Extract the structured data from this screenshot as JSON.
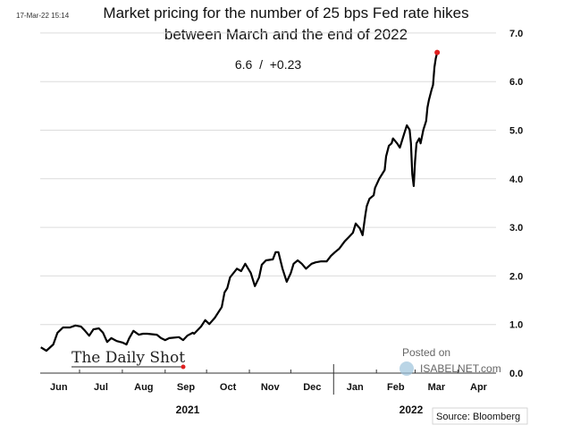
{
  "timestamp": "17-Mar-22 15:14",
  "chart_data": {
    "type": "line",
    "title": "Market pricing for the number of 25 bps Fed rate hikes",
    "title_line2": "between March and the end of 2022",
    "subtitle": "6.6  /  +0.23",
    "xlabel": "",
    "ylabel": "",
    "ylim": [
      0,
      7
    ],
    "yticks": [
      "0.0",
      "1.0",
      "2.0",
      "3.0",
      "4.0",
      "5.0",
      "6.0",
      "7.0"
    ],
    "y_axis_side": "right",
    "grid": true,
    "months": [
      "Jun",
      "Jul",
      "Aug",
      "Sep",
      "Oct",
      "Nov",
      "Dec",
      "Jan",
      "Feb",
      "Mar",
      "Apr"
    ],
    "years": [
      "2021",
      "2022"
    ],
    "line_color": "#000000",
    "last_point_color": "#e02020",
    "series": [
      {
        "x": [
          "2021-06-03",
          "2021-06-07",
          "2021-06-12",
          "2021-06-15",
          "2021-06-19",
          "2021-06-24",
          "2021-06-28",
          "2021-07-02",
          "2021-07-05",
          "2021-07-08",
          "2021-07-11",
          "2021-07-15",
          "2021-07-18",
          "2021-07-21",
          "2021-07-24",
          "2021-07-28",
          "2021-08-01",
          "2021-08-04",
          "2021-08-06",
          "2021-08-09",
          "2021-08-13",
          "2021-08-16",
          "2021-08-19",
          "2021-08-26",
          "2021-08-29",
          "2021-09-01",
          "2021-09-04",
          "2021-09-11",
          "2021-09-14",
          "2021-09-17",
          "2021-09-21",
          "2021-09-22",
          "2021-09-27",
          "2021-09-30",
          "2021-10-03",
          "2021-10-07",
          "2021-10-12",
          "2021-10-14",
          "2021-10-16",
          "2021-10-18",
          "2021-10-23",
          "2021-10-26",
          "2021-10-29",
          "2021-11-02",
          "2021-11-05",
          "2021-11-08",
          "2021-11-10",
          "2021-11-13",
          "2021-11-18",
          "2021-11-20",
          "2021-11-22",
          "2021-11-25",
          "2021-11-28",
          "2021-12-01",
          "2021-12-03",
          "2021-12-06",
          "2021-12-09",
          "2021-12-12",
          "2021-12-16",
          "2021-12-19",
          "2021-12-23",
          "2021-12-27",
          "2021-12-30",
          "2022-01-02",
          "2022-01-05",
          "2022-01-09",
          "2022-01-12",
          "2022-01-15",
          "2022-01-17",
          "2022-01-20",
          "2022-01-22",
          "2022-01-24",
          "2022-01-25",
          "2022-01-27",
          "2022-01-30",
          "2022-01-31",
          "2022-02-03",
          "2022-02-07",
          "2022-02-08",
          "2022-02-10",
          "2022-02-12",
          "2022-02-13",
          "2022-02-16",
          "2022-02-18",
          "2022-02-21",
          "2022-02-23",
          "2022-02-25",
          "2022-02-26",
          "2022-02-27",
          "2022-02-28",
          "2022-03-01",
          "2022-03-02",
          "2022-03-04",
          "2022-03-05",
          "2022-03-07",
          "2022-03-09",
          "2022-03-10",
          "2022-03-11",
          "2022-03-13",
          "2022-03-14",
          "2022-03-15",
          "2022-03-16",
          "2022-03-17"
        ],
        "y": [
          0.53,
          0.46,
          0.59,
          0.83,
          0.94,
          0.94,
          0.98,
          0.96,
          0.87,
          0.77,
          0.9,
          0.92,
          0.83,
          0.64,
          0.72,
          0.66,
          0.63,
          0.59,
          0.72,
          0.87,
          0.79,
          0.81,
          0.81,
          0.79,
          0.72,
          0.68,
          0.72,
          0.74,
          0.68,
          0.77,
          0.83,
          0.81,
          0.96,
          1.09,
          1.01,
          1.14,
          1.36,
          1.66,
          1.75,
          1.97,
          2.15,
          2.1,
          2.25,
          2.06,
          1.79,
          1.97,
          2.23,
          2.32,
          2.34,
          2.49,
          2.49,
          2.15,
          1.88,
          2.06,
          2.25,
          2.32,
          2.25,
          2.15,
          2.25,
          2.28,
          2.3,
          2.3,
          2.41,
          2.49,
          2.56,
          2.71,
          2.8,
          2.89,
          3.08,
          2.98,
          2.84,
          3.26,
          3.44,
          3.59,
          3.66,
          3.81,
          4.0,
          4.18,
          4.46,
          4.68,
          4.73,
          4.83,
          4.73,
          4.64,
          4.92,
          5.1,
          5.01,
          4.73,
          4.09,
          3.85,
          4.36,
          4.73,
          4.83,
          4.73,
          5.01,
          5.19,
          5.47,
          5.62,
          5.84,
          5.93,
          6.3,
          6.48,
          6.6
        ]
      }
    ]
  },
  "logo": "The Daily Shot",
  "watermark": {
    "line1": "Posted on",
    "line2": "ISABELNET.com"
  },
  "source": "Source: Bloomberg"
}
